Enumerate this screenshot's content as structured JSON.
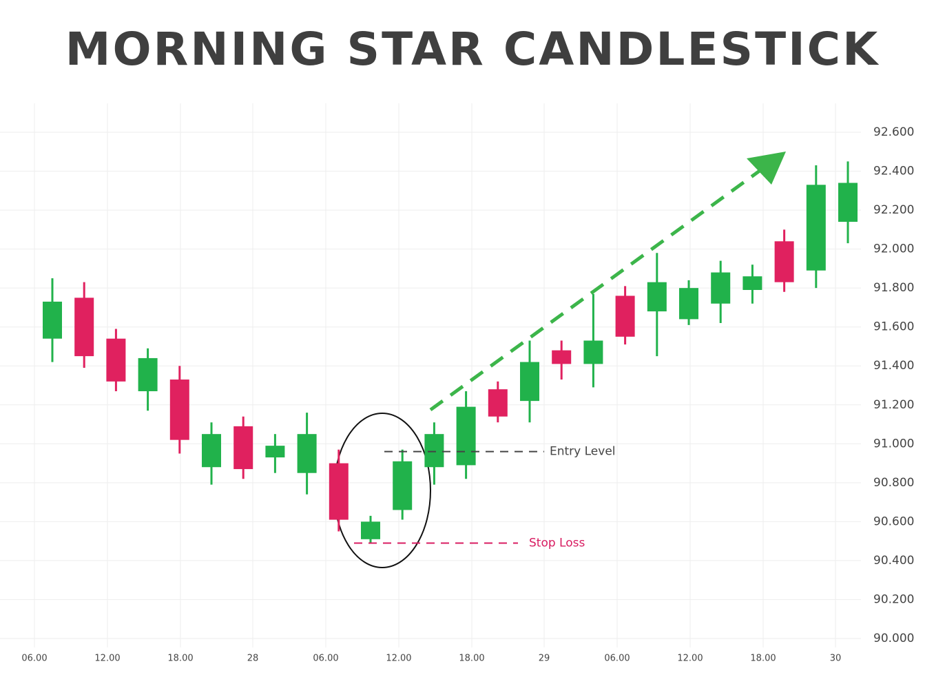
{
  "chart_data": {
    "type": "candlestick",
    "title": "MORNING STAR CANDLESTICK",
    "x": [
      0,
      1,
      2,
      3,
      4,
      5,
      6,
      7,
      8,
      9,
      10,
      11,
      12,
      13,
      14,
      15,
      16,
      17,
      18,
      19,
      20,
      21,
      22,
      23,
      24,
      25
    ],
    "open": [
      91.54,
      91.75,
      91.54,
      91.27,
      91.33,
      90.88,
      91.09,
      90.93,
      90.85,
      90.9,
      90.51,
      90.66,
      90.88,
      90.89,
      91.28,
      91.22,
      91.48,
      91.41,
      91.76,
      91.68,
      91.64,
      91.72,
      91.79,
      92.04,
      91.89,
      92.14
    ],
    "high": [
      91.85,
      91.83,
      91.59,
      91.49,
      91.4,
      91.11,
      91.14,
      91.05,
      91.16,
      90.97,
      90.63,
      90.97,
      91.11,
      91.27,
      91.32,
      91.53,
      91.53,
      91.77,
      91.81,
      91.98,
      91.84,
      91.94,
      91.92,
      92.1,
      92.43,
      92.45
    ],
    "low": [
      91.42,
      91.39,
      91.27,
      91.17,
      90.95,
      90.79,
      90.82,
      90.85,
      90.74,
      90.55,
      90.49,
      90.61,
      90.79,
      90.82,
      91.11,
      91.11,
      91.33,
      91.29,
      91.51,
      91.45,
      91.61,
      91.62,
      91.72,
      91.78,
      91.8,
      92.03
    ],
    "close": [
      91.73,
      91.45,
      91.32,
      91.44,
      91.02,
      91.05,
      90.87,
      90.99,
      91.05,
      90.61,
      90.6,
      90.91,
      91.05,
      91.19,
      91.14,
      91.42,
      91.41,
      91.53,
      91.55,
      91.83,
      91.8,
      91.88,
      91.86,
      91.83,
      92.33,
      92.34
    ],
    "up_color": "#21b24b",
    "down_color": "#e0215f",
    "xlim": [
      -1.645,
      25.411
    ],
    "xticks": [
      {
        "value": -0.563,
        "label": "06.00"
      },
      {
        "value": 1.732,
        "label": "12.00"
      },
      {
        "value": 4.026,
        "label": "18.00"
      },
      {
        "value": 6.299,
        "label": "28"
      },
      {
        "value": 8.593,
        "label": "06.00"
      },
      {
        "value": 10.887,
        "label": "12.00"
      },
      {
        "value": 13.182,
        "label": "18.00"
      },
      {
        "value": 15.455,
        "label": "29"
      },
      {
        "value": 17.749,
        "label": "06.00"
      },
      {
        "value": 20.043,
        "label": "12.00"
      },
      {
        "value": 22.338,
        "label": "18.00"
      },
      {
        "value": 24.61,
        "label": "30"
      }
    ],
    "ylim": [
      90,
      92.6
    ],
    "yticks": [
      {
        "value": 90.0,
        "label": "90.000"
      },
      {
        "value": 90.2,
        "label": "90.200"
      },
      {
        "value": 90.4,
        "label": "90.400"
      },
      {
        "value": 90.6,
        "label": "90.600"
      },
      {
        "value": 90.8,
        "label": "90.800"
      },
      {
        "value": 91.0,
        "label": "91.000"
      },
      {
        "value": 91.2,
        "label": "91.200"
      },
      {
        "value": 91.4,
        "label": "91.400"
      },
      {
        "value": 91.6,
        "label": "91.600"
      },
      {
        "value": 91.8,
        "label": "91.800"
      },
      {
        "value": 92.0,
        "label": "92.000"
      },
      {
        "value": 92.2,
        "label": "92.200"
      },
      {
        "value": 92.4,
        "label": "92.400"
      },
      {
        "value": 92.6,
        "label": "92.600"
      }
    ],
    "grid": true,
    "annotations": [
      {
        "text": "Entry Level",
        "value": 90.96,
        "color": "#444444"
      },
      {
        "text": "Stop Loss",
        "value": 90.49,
        "color": "#d81b60"
      }
    ]
  }
}
